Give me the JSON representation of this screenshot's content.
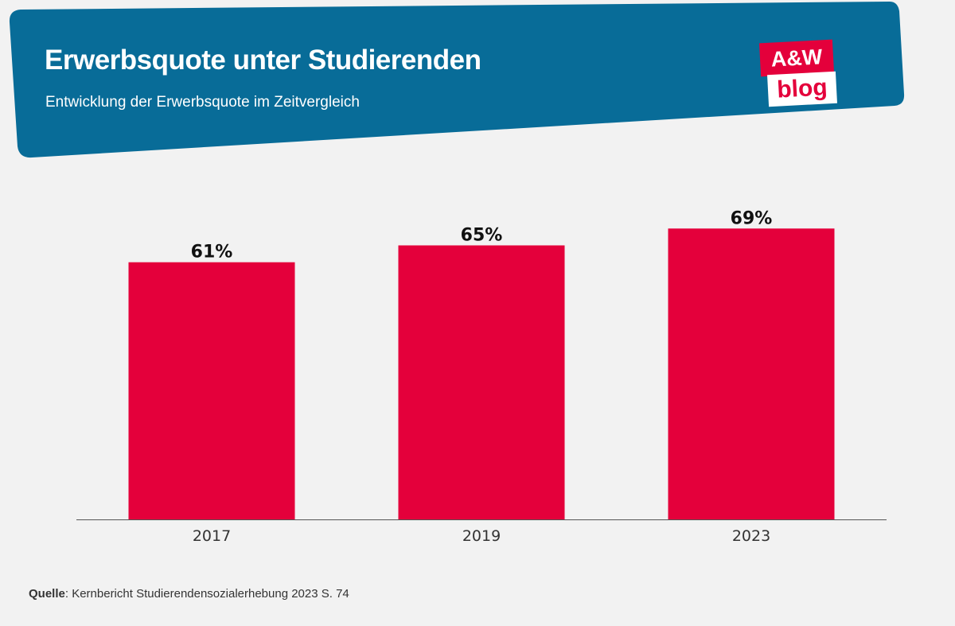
{
  "header": {
    "title": "Erwerbsquote unter Studierenden",
    "subtitle": "Entwicklung der Erwerbsquote im Zeitvergleich"
  },
  "logo": {
    "line1": "A&W",
    "line2": "blog"
  },
  "colors": {
    "banner": "#086c98",
    "bar": "#e4003b",
    "background": "#f2f2f2",
    "logo_red": "#e4003b"
  },
  "chart_data": {
    "type": "bar",
    "categories": [
      "2017",
      "2019",
      "2023"
    ],
    "values": [
      61,
      65,
      69
    ],
    "value_labels": [
      "61%",
      "65%",
      "69%"
    ],
    "ylim": [
      0,
      100
    ],
    "grid": false,
    "legend": "none",
    "xlabel": "",
    "ylabel": ""
  },
  "footer": {
    "source_label": "Quelle",
    "source_text": ": Kernbericht Studierendensozialerhebung 2023 S. 74"
  }
}
